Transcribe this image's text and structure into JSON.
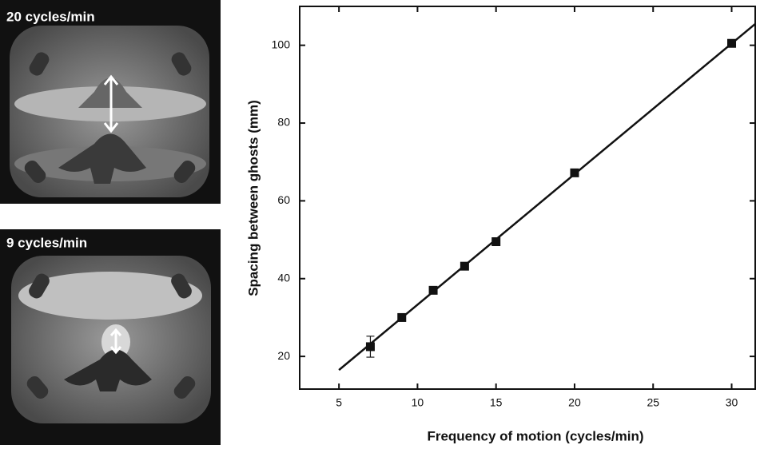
{
  "panels": [
    {
      "label": "20 cycles/min"
    },
    {
      "label": "9 cycles/min"
    }
  ],
  "chart_data": {
    "type": "scatter",
    "xlabel": "Frequency of motion (cycles/min)",
    "ylabel": "Spacing between ghosts (mm)",
    "x": [
      7,
      9,
      11,
      13,
      15,
      20,
      30
    ],
    "values": [
      22.5,
      30,
      37,
      43.2,
      49.5,
      67.2,
      100.5
    ],
    "errors": [
      2.7,
      null,
      null,
      null,
      null,
      null,
      null
    ],
    "color": "#111111",
    "fit": {
      "x": [
        5,
        31.5
      ],
      "values": [
        16.5,
        105.5
      ]
    },
    "xlim": [
      2.5,
      31.5
    ],
    "ylim": [
      11.6,
      110
    ],
    "xticks": [
      5,
      10,
      15,
      20,
      25,
      30
    ],
    "yticks": [
      20,
      40,
      60,
      80,
      100
    ]
  }
}
